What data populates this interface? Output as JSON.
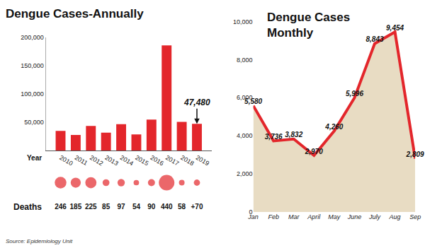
{
  "chart_data": [
    {
      "type": "bar",
      "title": "Dengue Cases-Annually",
      "x_label": "Year",
      "categories": [
        "2010",
        "2011",
        "2012",
        "2013",
        "2014",
        "2015",
        "2016",
        "2017",
        "2018",
        "2019"
      ],
      "values": [
        35000,
        28000,
        44000,
        32000,
        47000,
        29000,
        55000,
        186000,
        51000,
        47480
      ],
      "color": "#e3262b",
      "ylim": [
        0,
        200000
      ],
      "yticks": [
        {
          "value": 50000,
          "label": "50,000"
        },
        {
          "value": 100000,
          "label": "100,000"
        },
        {
          "value": 150000,
          "label": "150,000"
        },
        {
          "value": 200000,
          "label": "200,000"
        }
      ],
      "grid": false,
      "annotations": [
        {
          "text": "47,480",
          "x": "2019",
          "y": 47480
        }
      ],
      "deaths": {
        "label": "Deaths",
        "values": [
          246,
          185,
          225,
          85,
          97,
          54,
          90,
          440,
          58,
          70
        ],
        "value_labels": [
          "246",
          "185",
          "225",
          "85",
          "97",
          "54",
          "90",
          "440",
          "58",
          "+70"
        ],
        "color": "#e3262b"
      },
      "source": "Source: Epidemiology Unit"
    },
    {
      "type": "line",
      "title": "Dengue Cases Monthly",
      "categories": [
        "Jan",
        "Feb",
        "Mar",
        "April",
        "May",
        "June",
        "July",
        "Aug",
        "Sep"
      ],
      "values": [
        5580,
        3736,
        3832,
        2970,
        4260,
        5996,
        8843,
        9454,
        2809
      ],
      "value_labels": [
        "5,580",
        "3,736",
        "3,832",
        "2,970",
        "4,260",
        "5,996",
        "8,843",
        "9,454",
        "2,809"
      ],
      "data_labels": true,
      "color": "#e3262b",
      "ylim": [
        0,
        10000
      ],
      "yticks": [
        0,
        {
          "value": 2000,
          "label": "2,000"
        },
        {
          "value": 4000,
          "label": "4,000"
        },
        {
          "value": 6000,
          "label": "6,000"
        },
        {
          "value": 8000,
          "label": "8,000"
        },
        {
          "value": 10000,
          "label": "10,000"
        }
      ],
      "grid": false
    }
  ]
}
